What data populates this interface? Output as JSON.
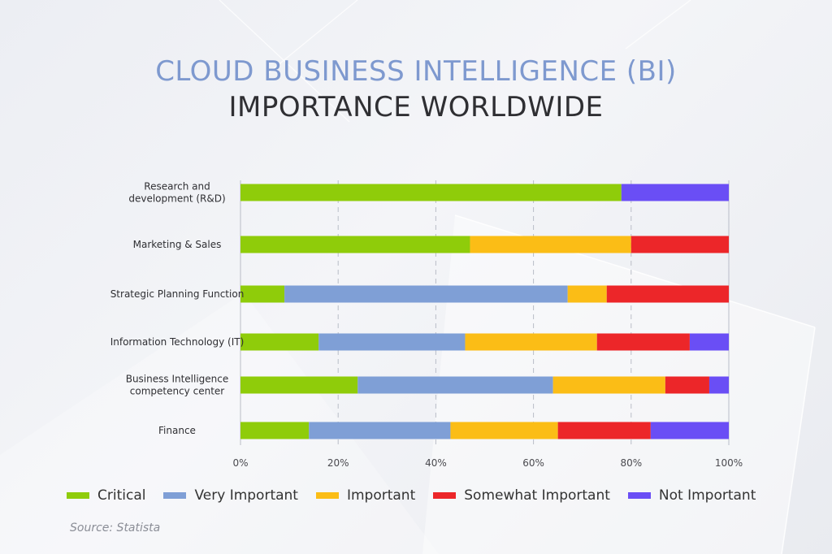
{
  "title_line1": "CLOUD BUSINESS INTELLIGENCE (BI)",
  "title_line2": "IMPORTANCE WORLDWIDE",
  "source": "Source: Statista",
  "legend": [
    {
      "label": "Critical",
      "color": "#8fcc0a"
    },
    {
      "label": "Very Important",
      "color": "#7f9fd6"
    },
    {
      "label": "Important",
      "color": "#fbbd16"
    },
    {
      "label": "Somewhat Important",
      "color": "#ec2629"
    },
    {
      "label": "Not Important",
      "color": "#6a4ef5"
    }
  ],
  "chart_data": {
    "type": "bar",
    "orientation": "horizontal",
    "stacked": true,
    "title": "CLOUD BUSINESS INTELLIGENCE (BI) IMPORTANCE WORLDWIDE",
    "xlabel": "",
    "ylabel": "",
    "xlim": [
      0,
      100
    ],
    "x_ticks": [
      "0%",
      "20%",
      "40%",
      "60%",
      "80%",
      "100%"
    ],
    "grid": "vertical dashed",
    "legend_position": "bottom",
    "categories": [
      "Research and development (R&D)",
      "Marketing & Sales",
      "Strategic Planning Function",
      "Information Technology (IT)",
      "Business Intelligence competency center",
      "Finance"
    ],
    "category_lines": [
      [
        "Research and",
        "development (R&D)"
      ],
      [
        "Marketing & Sales"
      ],
      [
        "Strategic Planning Function"
      ],
      [
        "Information Technology (IT)"
      ],
      [
        "Business Intelligence",
        "competency center"
      ],
      [
        "Finance"
      ]
    ],
    "series": [
      {
        "name": "Critical",
        "color": "#8fcc0a",
        "values": [
          78,
          47,
          9,
          16,
          24,
          14
        ]
      },
      {
        "name": "Very Important",
        "color": "#7f9fd6",
        "values": [
          0,
          0,
          58,
          30,
          40,
          29
        ]
      },
      {
        "name": "Important",
        "color": "#fbbd16",
        "values": [
          0,
          33,
          8,
          27,
          23,
          22
        ]
      },
      {
        "name": "Somewhat Important",
        "color": "#ec2629",
        "values": [
          0,
          20,
          25,
          19,
          9,
          19
        ]
      },
      {
        "name": "Not Important",
        "color": "#6a4ef5",
        "values": [
          22,
          0,
          0,
          8,
          4,
          16
        ]
      }
    ]
  }
}
